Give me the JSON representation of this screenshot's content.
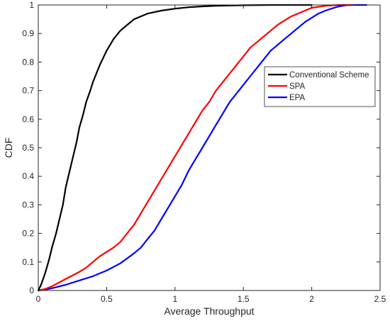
{
  "chart_data": {
    "type": "line",
    "title": "",
    "xlabel": "Average Throughput",
    "ylabel": "CDF",
    "xlim": [
      0,
      2.5
    ],
    "ylim": [
      0,
      1
    ],
    "xticks": [
      0,
      0.5,
      1,
      1.5,
      2,
      2.5
    ],
    "xtick_labels": [
      "0",
      "0.5",
      "1",
      "1.5",
      "2",
      "2.5"
    ],
    "yticks": [
      0,
      0.1,
      0.2,
      0.3,
      0.4,
      0.5,
      0.6,
      0.7,
      0.8,
      0.9,
      1
    ],
    "ytick_labels": [
      "0",
      "0.1",
      "0.2",
      "0.3",
      "0.4",
      "0.5",
      "0.6",
      "0.7",
      "0.8",
      "0.9",
      "1"
    ],
    "grid": false,
    "legend_position": "upper-right",
    "series": [
      {
        "name": "Conventional Scheme",
        "color": "#000000",
        "x": [
          0,
          0.02,
          0.05,
          0.08,
          0.1,
          0.13,
          0.15,
          0.18,
          0.2,
          0.23,
          0.25,
          0.28,
          0.3,
          0.33,
          0.35,
          0.38,
          0.4,
          0.45,
          0.5,
          0.55,
          0.6,
          0.65,
          0.7,
          0.75,
          0.8,
          0.85,
          0.9,
          1.0,
          1.1,
          1.2,
          1.3,
          1.4,
          1.5,
          1.7,
          2.0
        ],
        "y": [
          0,
          0.02,
          0.06,
          0.11,
          0.15,
          0.2,
          0.24,
          0.3,
          0.36,
          0.42,
          0.46,
          0.52,
          0.57,
          0.62,
          0.66,
          0.7,
          0.73,
          0.79,
          0.84,
          0.88,
          0.91,
          0.93,
          0.95,
          0.96,
          0.97,
          0.975,
          0.98,
          0.987,
          0.992,
          0.995,
          0.997,
          0.998,
          0.999,
          1.0,
          1.0
        ]
      },
      {
        "name": "SPA",
        "color": "#ff0000",
        "x": [
          0,
          0.05,
          0.1,
          0.2,
          0.3,
          0.35,
          0.4,
          0.45,
          0.5,
          0.55,
          0.6,
          0.65,
          0.7,
          0.75,
          0.8,
          0.85,
          0.9,
          0.95,
          1.0,
          1.05,
          1.1,
          1.15,
          1.2,
          1.25,
          1.3,
          1.35,
          1.4,
          1.45,
          1.5,
          1.55,
          1.6,
          1.65,
          1.7,
          1.75,
          1.8,
          1.85,
          1.9,
          1.95,
          2.0,
          2.1,
          2.2,
          2.3
        ],
        "y": [
          0,
          0.005,
          0.015,
          0.04,
          0.065,
          0.08,
          0.1,
          0.12,
          0.135,
          0.15,
          0.17,
          0.2,
          0.23,
          0.27,
          0.31,
          0.35,
          0.39,
          0.43,
          0.47,
          0.51,
          0.55,
          0.59,
          0.63,
          0.66,
          0.7,
          0.73,
          0.76,
          0.79,
          0.82,
          0.85,
          0.87,
          0.89,
          0.91,
          0.93,
          0.945,
          0.96,
          0.97,
          0.98,
          0.99,
          0.997,
          1.0,
          1.0
        ]
      },
      {
        "name": "EPA",
        "color": "#0000ff",
        "x": [
          0,
          0.05,
          0.1,
          0.2,
          0.3,
          0.4,
          0.5,
          0.6,
          0.7,
          0.75,
          0.8,
          0.85,
          0.9,
          0.95,
          1.0,
          1.05,
          1.1,
          1.15,
          1.2,
          1.25,
          1.3,
          1.35,
          1.4,
          1.45,
          1.5,
          1.55,
          1.6,
          1.65,
          1.7,
          1.75,
          1.8,
          1.85,
          1.9,
          1.95,
          2.0,
          2.05,
          2.1,
          2.15,
          2.2,
          2.25,
          2.3,
          2.4
        ],
        "y": [
          0,
          0.003,
          0.008,
          0.02,
          0.035,
          0.05,
          0.07,
          0.095,
          0.13,
          0.15,
          0.18,
          0.21,
          0.25,
          0.29,
          0.33,
          0.37,
          0.42,
          0.46,
          0.5,
          0.54,
          0.58,
          0.62,
          0.66,
          0.69,
          0.72,
          0.75,
          0.78,
          0.81,
          0.84,
          0.86,
          0.88,
          0.9,
          0.92,
          0.94,
          0.955,
          0.97,
          0.98,
          0.988,
          0.995,
          0.999,
          1.0,
          1.0
        ]
      }
    ]
  }
}
